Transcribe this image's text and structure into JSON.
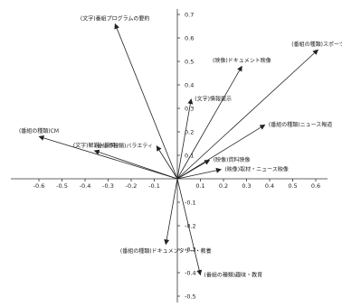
{
  "chart_data": {
    "type": "biplot",
    "title": "",
    "xlabel": "",
    "ylabel": "",
    "xlim": [
      -0.65,
      0.68
    ],
    "ylim": [
      -0.55,
      0.75
    ],
    "grid": false,
    "x_ticks": [
      -0.6,
      -0.5,
      -0.4,
      -0.3,
      -0.2,
      -0.1,
      0.1,
      0.2,
      0.3,
      0.4,
      0.5,
      0.6
    ],
    "x_tick_labels": [
      "-0.6",
      "-0.5",
      "-0.4",
      "-0.3",
      "-0.2",
      "-0.1",
      "0.1",
      "0.2",
      "0.3",
      "0.4",
      "0.5",
      "0.6"
    ],
    "y_ticks": [
      0.7,
      0.6,
      0.5,
      0.4,
      0.3,
      0.2,
      0.1,
      -0.1,
      -0.2,
      -0.3,
      -0.4,
      -0.5
    ],
    "y_tick_labels": [
      "0.7",
      "0.6",
      "0.5",
      "0.4",
      "0.3",
      "0.2",
      "0.1",
      "-0.1",
      "-0.2",
      "-0.3",
      "-0.4",
      "-0.5"
    ],
    "vectors": [
      {
        "label": "(文字)番組プログラムの要約",
        "x": -0.27,
        "y": 0.66,
        "label_pos": "above"
      },
      {
        "label": "(番組の種類)スポーツ",
        "x": 0.61,
        "y": 0.55,
        "label_pos": "above"
      },
      {
        "label": "(映像)ドキュメント映像",
        "x": 0.28,
        "y": 0.48,
        "label_pos": "above"
      },
      {
        "label": "(文字)情報提示",
        "x": 0.06,
        "y": 0.34,
        "label_pos": "right"
      },
      {
        "label": "(番組の種類)ニュース報道",
        "x": 0.38,
        "y": 0.23,
        "label_pos": "right"
      },
      {
        "label": "(映像)資料映像",
        "x": 0.14,
        "y": 0.08,
        "label_pos": "right"
      },
      {
        "label": "(映像)取材・ニュース映像",
        "x": 0.19,
        "y": 0.04,
        "label_pos": "right"
      },
      {
        "label": "(番組の種類)CM",
        "x": -0.6,
        "y": 0.18,
        "label_pos": "above"
      },
      {
        "label": "(文字)解説・説明",
        "x": -0.36,
        "y": 0.12,
        "label_pos": "above"
      },
      {
        "label": "(番組の種類)バラエティ",
        "x": -0.09,
        "y": 0.14,
        "label_pos": "left"
      },
      {
        "label": "(番組の種類)ドキュメンタリー・教養",
        "x": -0.05,
        "y": -0.28,
        "label_pos": "below"
      },
      {
        "label": "(番組の種類)趣味・教育",
        "x": 0.1,
        "y": -0.41,
        "label_pos": "right"
      }
    ]
  }
}
